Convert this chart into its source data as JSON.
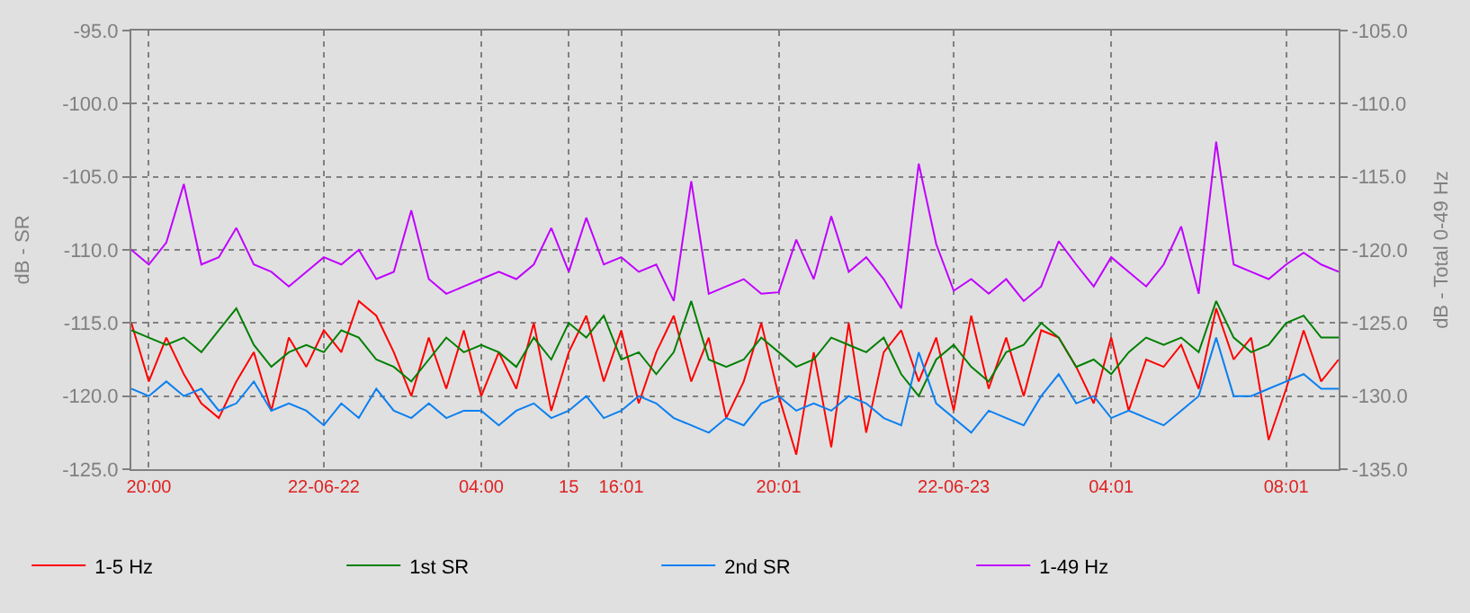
{
  "chart_data": {
    "type": "line",
    "ylabel": "dB - SR",
    "y2label": "dB - Total 0-49 Hz",
    "categories": [
      null,
      "20:00",
      null,
      null,
      null,
      null,
      null,
      null,
      null,
      null,
      null,
      "22-06-22",
      null,
      null,
      null,
      null,
      null,
      null,
      null,
      null,
      "04:00",
      null,
      null,
      null,
      null,
      "15",
      null,
      null,
      "16:01",
      null,
      null,
      null,
      null,
      null,
      null,
      null,
      null,
      "20:01",
      null,
      null,
      null,
      null,
      null,
      null,
      null,
      null,
      null,
      "22-06-23",
      null,
      null,
      null,
      null,
      null,
      null,
      null,
      null,
      "04:01",
      null,
      null,
      null,
      null,
      null,
      null,
      null,
      null,
      null,
      "08:01",
      null,
      null,
      null
    ],
    "series": [
      {
        "name": "1-5 Hz",
        "color": "#ff0000",
        "values": [
          -115.0,
          -119.0,
          -116.0,
          -118.5,
          -120.5,
          -121.5,
          -119.0,
          -117.0,
          -121.0,
          -116.0,
          -118.0,
          -115.5,
          -117.0,
          -113.5,
          -114.5,
          -117.0,
          -120.0,
          -116.0,
          -119.5,
          -115.5,
          -120.0,
          -117.0,
          -119.5,
          -115.0,
          -121.0,
          -117.0,
          -114.5,
          -119.0,
          -115.5,
          -120.5,
          -117.0,
          -114.5,
          -119.0,
          -116.0,
          -121.5,
          -119.0,
          -115.0,
          -120.0,
          -124.0,
          -117.0,
          -123.5,
          -115.0,
          -122.5,
          -117.0,
          -115.5,
          -119.0,
          -116.0,
          -121.0,
          -114.5,
          -119.5,
          -116.0,
          -120.0,
          -115.5,
          -116.0,
          -118.0,
          -120.5,
          -116.0,
          -121.0,
          -117.5,
          -118.0,
          -116.5,
          -119.5,
          -114.0,
          -117.5,
          -116.0,
          -123.0,
          -119.5,
          -115.5,
          -119.0,
          -117.5
        ]
      },
      {
        "name": "1st SR",
        "color": "#007f00",
        "values": [
          -115.5,
          -116.0,
          -116.5,
          -116.0,
          -117.0,
          -115.5,
          -114.0,
          -116.5,
          -118.0,
          -117.0,
          -116.5,
          -117.0,
          -115.5,
          -116.0,
          -117.5,
          -118.0,
          -119.0,
          -117.5,
          -116.0,
          -117.0,
          -116.5,
          -117.0,
          -118.0,
          -116.0,
          -117.5,
          -115.0,
          -116.0,
          -114.5,
          -117.5,
          -117.0,
          -118.5,
          -117.0,
          -113.5,
          -117.5,
          -118.0,
          -117.5,
          -116.0,
          -117.0,
          -118.0,
          -117.5,
          -116.0,
          -116.5,
          -117.0,
          -116.0,
          -118.5,
          -120.0,
          -117.5,
          -116.5,
          -118.0,
          -119.0,
          -117.0,
          -116.5,
          -115.0,
          -116.0,
          -118.0,
          -117.5,
          -118.5,
          -117.0,
          -116.0,
          -116.5,
          -116.0,
          -117.0,
          -113.5,
          -116.0,
          -117.0,
          -116.5,
          -115.0,
          -114.5,
          -116.0,
          -116.0
        ]
      },
      {
        "name": "2nd SR",
        "color": "#0a7ff0",
        "values": [
          -119.5,
          -120.0,
          -119.0,
          -120.0,
          -119.5,
          -121.0,
          -120.5,
          -119.0,
          -121.0,
          -120.5,
          -121.0,
          -122.0,
          -120.5,
          -121.5,
          -119.5,
          -121.0,
          -121.5,
          -120.5,
          -121.5,
          -121.0,
          -121.0,
          -122.0,
          -121.0,
          -120.5,
          -121.5,
          -121.0,
          -120.0,
          -121.5,
          -121.0,
          -120.0,
          -120.5,
          -121.5,
          -122.0,
          -122.5,
          -121.5,
          -122.0,
          -120.5,
          -120.0,
          -121.0,
          -120.5,
          -121.0,
          -120.0,
          -120.5,
          -121.5,
          -122.0,
          -117.0,
          -120.5,
          -121.5,
          -122.5,
          -121.0,
          -121.5,
          -122.0,
          -120.0,
          -118.5,
          -120.5,
          -120.0,
          -121.5,
          -121.0,
          -121.5,
          -122.0,
          -121.0,
          -120.0,
          -116.0,
          -120.0,
          -120.0,
          -119.5,
          -119.0,
          -118.5,
          -119.5,
          -119.5
        ]
      },
      {
        "name": "1-49 Hz",
        "color": "#c000ff",
        "axis": "y2",
        "values": [
          -120.0,
          -121.0,
          -119.5,
          -115.5,
          -121.0,
          -120.5,
          -118.5,
          -121.0,
          -121.5,
          -122.5,
          -121.5,
          -120.5,
          -121.0,
          -120.0,
          -122.0,
          -121.5,
          -117.3,
          -122.0,
          -123.0,
          -122.5,
          -122.0,
          -121.5,
          -122.0,
          -121.0,
          -118.5,
          -121.5,
          -117.8,
          -121.0,
          -120.5,
          -121.5,
          -121.0,
          -123.5,
          -115.3,
          -123.0,
          -122.5,
          -122.0,
          -123.0,
          -122.9,
          -119.3,
          -122.0,
          -117.7,
          -121.5,
          -120.5,
          -122.0,
          -124.0,
          -114.1,
          -119.6,
          -122.8,
          -122.0,
          -123.0,
          -122.0,
          -123.5,
          -122.5,
          -119.4,
          -121.0,
          -122.5,
          -120.5,
          -121.5,
          -122.5,
          -121.0,
          -118.4,
          -123.0,
          -112.6,
          -121.0,
          -121.5,
          -122.0,
          -121.0,
          -120.2,
          -121.0,
          -121.5
        ]
      }
    ],
    "ylim": [
      -125,
      -95
    ],
    "yticks": [
      {
        "value": -125,
        "label": "-125.0"
      },
      {
        "value": -120,
        "label": "-120.0"
      },
      {
        "value": -115,
        "label": "-115.0"
      },
      {
        "value": -110,
        "label": "-110.0"
      },
      {
        "value": -105,
        "label": "-105.0"
      },
      {
        "value": -100,
        "label": "-100.0"
      },
      {
        "value": -95,
        "label": "-95.0"
      }
    ],
    "y2lim": [
      -135,
      -105
    ],
    "y2ticks": [
      {
        "value": -135,
        "label": "-135.0"
      },
      {
        "value": -130,
        "label": "-130.0"
      },
      {
        "value": -125,
        "label": "-125.0"
      },
      {
        "value": -120,
        "label": "-120.0"
      },
      {
        "value": -115,
        "label": "-115.0"
      },
      {
        "value": -110,
        "label": "-110.0"
      },
      {
        "value": -105,
        "label": "-105.0"
      }
    ],
    "grid": true,
    "legend": "bottom",
    "marker": "none",
    "line_style": "solid"
  }
}
